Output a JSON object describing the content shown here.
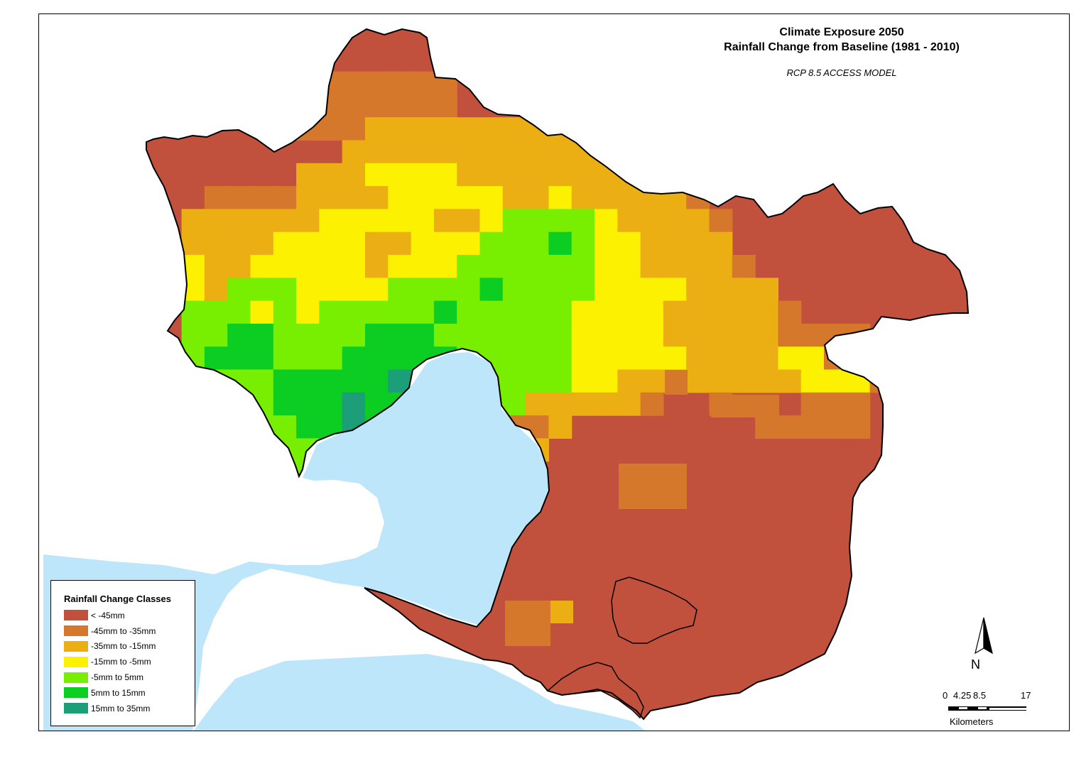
{
  "map": {
    "title_line1": "Climate Exposure 2050",
    "title_line2": "Rainfall Change from Baseline (1981 - 2010)",
    "subtitle": "RCP 8.5 ACCESS MODEL",
    "colors": {
      "lt_neg45": "#c1513d",
      "neg45_neg35": "#d6782b",
      "neg35_neg15": "#ebaf14",
      "neg15_neg5": "#fbf101",
      "neg5_5": "#78ee01",
      "5_15": "#0bcd22",
      "15_35": "#1c9e79",
      "water": "#bde6fb",
      "land_outside": "#ffffff"
    }
  },
  "legend": {
    "title": "Rainfall Change Classes",
    "items": [
      {
        "label": "< -45mm",
        "color": "#c1513d"
      },
      {
        "label": "-45mm to -35mm",
        "color": "#d6782b"
      },
      {
        "label": "-35mm to -15mm",
        "color": "#ebaf14"
      },
      {
        "label": "-15mm to -5mm",
        "color": "#fbf101"
      },
      {
        "label": "-5mm to 5mm",
        "color": "#78ee01"
      },
      {
        "label": "5mm to 15mm",
        "color": "#0bcd22"
      },
      {
        "label": "15mm to 35mm",
        "color": "#1c9e79"
      }
    ]
  },
  "north_arrow": {
    "label": "N"
  },
  "scale_bar": {
    "ticks": [
      "0",
      "4.25",
      "8.5",
      "17"
    ],
    "unit": "Kilometers"
  }
}
